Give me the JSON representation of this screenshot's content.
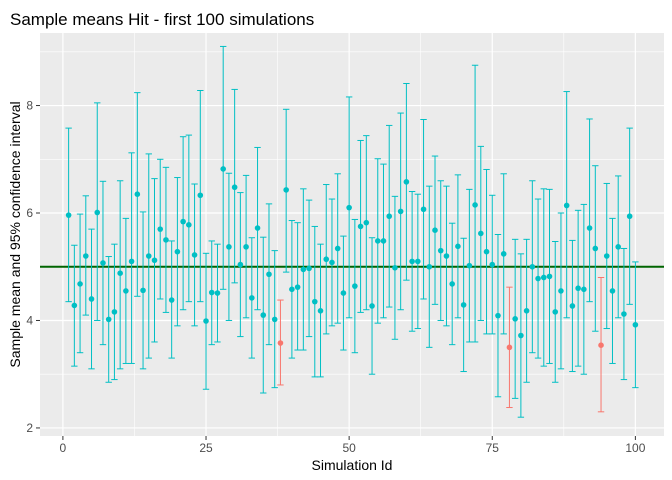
{
  "chart_data": {
    "type": "scatter",
    "title": "Sample means Hit - first 100 simulations",
    "xlabel": "Simulation Id",
    "ylabel": "Sample mean and 95% confidence interval",
    "xlim": [
      -4,
      105
    ],
    "ylim": [
      1.85,
      9.35
    ],
    "x_ticks": [
      0,
      25,
      50,
      75,
      100
    ],
    "x_tick_labels": [
      "0",
      "25",
      "50",
      "75",
      "100"
    ],
    "y_ticks": [
      2,
      4,
      6,
      8
    ],
    "y_tick_labels": [
      "2",
      "4",
      "6",
      "8"
    ],
    "grid": true,
    "reference_line": {
      "y": 5,
      "color": "#006400"
    },
    "colors": {
      "covers_true_mean": "#00BFC4",
      "misses_true_mean": "#F8766D",
      "panel_background": "#EBEBEB",
      "grid": "#FFFFFF"
    },
    "series": [
      {
        "x": [
          1,
          2,
          3,
          4,
          5,
          6,
          7,
          8,
          9,
          10,
          11,
          12,
          13,
          14,
          15,
          16,
          17,
          18,
          19,
          20,
          21,
          22,
          23,
          24,
          25,
          26,
          27,
          28,
          29,
          30,
          31,
          32,
          33,
          34,
          35,
          36,
          37,
          38,
          39,
          40,
          41,
          42,
          43,
          44,
          45,
          46,
          47,
          48,
          49,
          50,
          51,
          52,
          53,
          54,
          55,
          56,
          57,
          58,
          59,
          60,
          61,
          62,
          63,
          64,
          65,
          66,
          67,
          68,
          69,
          70,
          71,
          72,
          73,
          74,
          75,
          76,
          77,
          78,
          79,
          80,
          81,
          82,
          83,
          84,
          85,
          86,
          87,
          88,
          89,
          90,
          91,
          92,
          93,
          94,
          95,
          96,
          97,
          98,
          99,
          100
        ],
        "y": [
          5.96,
          4.28,
          4.68,
          5.2,
          4.4,
          6.01,
          5.07,
          4.02,
          4.16,
          4.88,
          4.55,
          5.1,
          6.35,
          4.56,
          5.2,
          5.12,
          5.7,
          5.5,
          4.38,
          5.28,
          5.84,
          5.78,
          5.22,
          6.33,
          3.99,
          4.52,
          4.51,
          6.82,
          5.37,
          6.48,
          5.04,
          5.37,
          4.42,
          5.72,
          4.1,
          4.86,
          4.02,
          3.58,
          6.43,
          4.58,
          4.62,
          4.95,
          4.97,
          4.35,
          4.18,
          5.14,
          5.08,
          5.34,
          4.51,
          6.1,
          4.64,
          5.75,
          5.82,
          4.27,
          5.48,
          5.48,
          5.94,
          4.98,
          6.03,
          6.58,
          5.1,
          5.1,
          6.07,
          5.0,
          5.68,
          5.3,
          5.2,
          4.68,
          5.38,
          4.29,
          5.02,
          6.15,
          5.62,
          5.28,
          5.04,
          4.09,
          5.24,
          3.5,
          4.03,
          3.72,
          4.18,
          5.0,
          4.78,
          4.8,
          4.82,
          4.16,
          4.55,
          6.14,
          4.27,
          4.6,
          4.58,
          5.72,
          5.34,
          3.54,
          5.2,
          4.55,
          5.37,
          4.12,
          5.94,
          3.92
        ],
        "lower": [
          4.35,
          3.15,
          3.4,
          4.1,
          3.1,
          4.0,
          3.55,
          2.85,
          2.9,
          3.1,
          3.2,
          3.2,
          4.45,
          3.1,
          3.3,
          3.6,
          4.4,
          4.15,
          3.3,
          3.9,
          4.2,
          4.35,
          3.9,
          4.35,
          2.72,
          3.55,
          3.6,
          4.58,
          4.0,
          4.7,
          3.7,
          4.05,
          3.3,
          4.2,
          2.65,
          3.55,
          2.75,
          2.8,
          4.9,
          3.3,
          3.45,
          3.45,
          3.7,
          2.95,
          2.95,
          3.75,
          3.9,
          3.95,
          3.45,
          4.05,
          3.4,
          4.15,
          4.2,
          3.0,
          3.95,
          4.05,
          4.25,
          3.65,
          4.2,
          4.75,
          3.8,
          3.85,
          4.4,
          3.5,
          4.3,
          4.0,
          3.9,
          3.55,
          4.05,
          3.05,
          3.6,
          3.6,
          4.0,
          3.75,
          3.75,
          2.58,
          3.75,
          2.38,
          2.55,
          2.2,
          2.85,
          3.4,
          3.3,
          3.15,
          3.2,
          2.85,
          3.1,
          4.05,
          3.05,
          3.15,
          3.0,
          4.35,
          3.8,
          2.3,
          3.85,
          3.2,
          4.05,
          2.9,
          4.3,
          2.75
        ],
        "upper": [
          7.58,
          5.4,
          5.98,
          6.32,
          5.7,
          8.05,
          6.59,
          5.19,
          5.42,
          6.6,
          5.9,
          7.12,
          8.24,
          6.02,
          7.1,
          6.64,
          7.0,
          6.85,
          5.48,
          6.66,
          7.42,
          7.45,
          6.54,
          8.28,
          5.25,
          5.48,
          5.42,
          9.1,
          6.74,
          8.3,
          6.38,
          6.7,
          5.54,
          7.22,
          5.55,
          6.17,
          5.3,
          4.38,
          7.93,
          5.86,
          5.82,
          6.45,
          6.24,
          5.75,
          5.42,
          6.53,
          6.26,
          6.73,
          5.57,
          8.16,
          5.88,
          7.35,
          7.44,
          5.54,
          7.01,
          6.91,
          7.63,
          6.31,
          7.86,
          8.41,
          6.4,
          6.35,
          7.74,
          6.5,
          7.06,
          6.6,
          6.5,
          5.81,
          6.71,
          5.53,
          6.44,
          8.75,
          7.24,
          6.81,
          6.33,
          5.6,
          6.73,
          4.62,
          5.51,
          5.24,
          5.51,
          6.6,
          6.26,
          6.45,
          6.44,
          5.47,
          6.0,
          8.26,
          5.49,
          6.05,
          6.16,
          7.75,
          6.88,
          4.8,
          6.55,
          5.9,
          6.69,
          5.34,
          7.58,
          5.09
        ]
      }
    ]
  }
}
